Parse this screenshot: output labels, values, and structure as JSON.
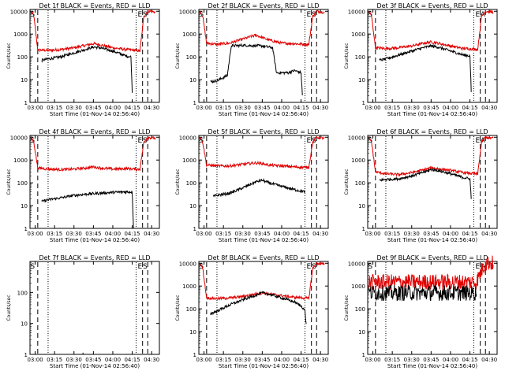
{
  "colors": {
    "events": "#000000",
    "lld": "#e00000",
    "axes": "#000000",
    "background": "#ffffff"
  },
  "xlabel": "Start Time (01-Nov-14 02:56:40)",
  "ylabel": "Counts/sec",
  "x_ticks": [
    "03:00",
    "03:15",
    "03:30",
    "03:45",
    "04:00",
    "04:15",
    "04:30"
  ],
  "y_ticks": [
    "1",
    "10",
    "100",
    "1000",
    "10000"
  ],
  "chart_data": [
    {
      "type": "line",
      "title": "Det 1f BLACK = Events, RED = LLD",
      "ylim": [
        1,
        12000
      ],
      "ylog": true,
      "vlines_dashed": [
        "03:02",
        "04:23",
        "04:27"
      ],
      "vlines_dotted": [
        "03:10",
        "04:18"
      ],
      "markers": [
        {
          "label": "S",
          "x": "02:58"
        },
        {
          "label": "E",
          "x": "04:21"
        },
        {
          "label": "S",
          "x": "04:25"
        }
      ],
      "series": [
        {
          "name": "LLD",
          "color": "#e00000",
          "x": [
            "02:57",
            "02:59",
            "03:02",
            "03:10",
            "03:20",
            "03:30",
            "03:40",
            "03:45",
            "03:50",
            "04:00",
            "04:10",
            "04:15",
            "04:18",
            "04:21",
            "04:24",
            "04:27",
            "04:30",
            "04:33"
          ],
          "y": [
            10000,
            6000,
            200,
            190,
            210,
            250,
            330,
            380,
            340,
            250,
            210,
            200,
            190,
            180,
            6000,
            10000,
            10000,
            9000
          ]
        },
        {
          "name": "Events",
          "color": "#000000",
          "x": [
            "03:05",
            "03:10",
            "03:20",
            "03:30",
            "03:40",
            "03:45",
            "03:50",
            "04:00",
            "04:10",
            "04:14",
            "04:15"
          ],
          "y": [
            70,
            80,
            100,
            150,
            220,
            270,
            250,
            180,
            110,
            100,
            3
          ]
        }
      ]
    },
    {
      "type": "line",
      "title": "Det 2f BLACK = Events, RED = LLD",
      "ylim": [
        1,
        12000
      ],
      "ylog": true,
      "vlines_dashed": [
        "03:02",
        "04:23",
        "04:27"
      ],
      "vlines_dotted": [
        "03:10",
        "04:18"
      ],
      "markers": [
        {
          "label": "S",
          "x": "02:58"
        },
        {
          "label": "E",
          "x": "04:21"
        },
        {
          "label": "S",
          "x": "04:25"
        }
      ],
      "series": [
        {
          "name": "LLD",
          "color": "#e00000",
          "x": [
            "02:57",
            "02:59",
            "03:02",
            "03:10",
            "03:20",
            "03:30",
            "03:40",
            "03:45",
            "03:50",
            "04:00",
            "04:10",
            "04:18",
            "04:21",
            "04:24",
            "04:27",
            "04:33"
          ],
          "y": [
            10000,
            6000,
            400,
            350,
            400,
            600,
            900,
            700,
            550,
            400,
            380,
            350,
            350,
            6000,
            10000,
            9000
          ]
        },
        {
          "name": "Events",
          "color": "#000000",
          "x": [
            "03:05",
            "03:10",
            "03:18",
            "03:21",
            "03:30",
            "03:45",
            "03:53",
            "03:56",
            "04:05",
            "04:10",
            "04:15",
            "04:16"
          ],
          "y": [
            8,
            9,
            15,
            300,
            320,
            300,
            250,
            20,
            20,
            25,
            20,
            2
          ]
        }
      ]
    },
    {
      "type": "line",
      "title": "Det 3f BLACK = Events, RED = LLD",
      "ylim": [
        1,
        12000
      ],
      "ylog": true,
      "vlines_dashed": [
        "03:02",
        "04:23",
        "04:27"
      ],
      "vlines_dotted": [
        "03:10",
        "04:18"
      ],
      "markers": [
        {
          "label": "S",
          "x": "02:58"
        },
        {
          "label": "E",
          "x": "04:21"
        },
        {
          "label": "A",
          "x": "04:25"
        }
      ],
      "series": [
        {
          "name": "LLD",
          "color": "#e00000",
          "x": [
            "02:57",
            "02:59",
            "03:02",
            "03:10",
            "03:20",
            "03:30",
            "03:40",
            "03:45",
            "03:50",
            "04:00",
            "04:10",
            "04:18",
            "04:21",
            "04:24",
            "04:27",
            "04:33"
          ],
          "y": [
            10000,
            6000,
            250,
            230,
            250,
            300,
            400,
            450,
            400,
            300,
            230,
            220,
            210,
            6000,
            10000,
            9000
          ]
        },
        {
          "name": "Events",
          "color": "#000000",
          "x": [
            "03:05",
            "03:10",
            "03:20",
            "03:30",
            "03:40",
            "03:45",
            "03:50",
            "04:00",
            "04:10",
            "04:15",
            "04:16"
          ],
          "y": [
            70,
            80,
            120,
            180,
            260,
            300,
            270,
            180,
            120,
            110,
            3
          ]
        }
      ]
    },
    {
      "type": "line",
      "title": "Det 4f BLACK = Events, RED = LLD",
      "ylim": [
        1,
        12000
      ],
      "ylog": true,
      "vlines_dashed": [
        "03:02",
        "04:23",
        "04:27"
      ],
      "vlines_dotted": [
        "03:10",
        "04:18"
      ],
      "markers": [
        {
          "label": "S",
          "x": "02:58"
        },
        {
          "label": "E",
          "x": "04:21"
        },
        {
          "label": "S",
          "x": "04:25"
        }
      ],
      "series": [
        {
          "name": "LLD",
          "color": "#e00000",
          "x": [
            "02:57",
            "02:59",
            "03:02",
            "03:10",
            "03:20",
            "03:30",
            "03:40",
            "03:45",
            "03:50",
            "04:00",
            "04:10",
            "04:18",
            "04:21",
            "04:24",
            "04:27",
            "04:33"
          ],
          "y": [
            10000,
            6000,
            450,
            400,
            380,
            400,
            450,
            500,
            450,
            400,
            420,
            400,
            400,
            6000,
            10000,
            9000
          ]
        },
        {
          "name": "Events",
          "color": "#000000",
          "x": [
            "03:05",
            "03:10",
            "03:20",
            "03:30",
            "03:40",
            "03:50",
            "04:00",
            "04:10",
            "04:15",
            "04:16"
          ],
          "y": [
            15,
            18,
            22,
            28,
            32,
            35,
            38,
            40,
            40,
            1
          ]
        }
      ]
    },
    {
      "type": "line",
      "title": "Det 5f BLACK = Events, RED = LLD",
      "ylim": [
        1,
        12000
      ],
      "ylog": true,
      "vlines_dashed": [
        "03:02",
        "04:23",
        "04:27"
      ],
      "vlines_dotted": [
        "03:10",
        "04:18"
      ],
      "markers": [
        {
          "label": "S",
          "x": "02:58"
        },
        {
          "label": "E",
          "x": "04:21"
        },
        {
          "label": "S",
          "x": "04:25"
        }
      ],
      "series": [
        {
          "name": "LLD",
          "color": "#e00000",
          "x": [
            "02:57",
            "02:59",
            "03:02",
            "03:10",
            "03:20",
            "03:30",
            "03:40",
            "03:45",
            "03:50",
            "04:00",
            "04:10",
            "04:18",
            "04:21",
            "04:24",
            "04:27",
            "04:33"
          ],
          "y": [
            10000,
            6000,
            600,
            550,
            550,
            650,
            750,
            700,
            600,
            550,
            500,
            480,
            480,
            6000,
            10000,
            9000
          ]
        },
        {
          "name": "Events",
          "color": "#000000",
          "x": [
            "03:07",
            "03:10",
            "03:20",
            "03:30",
            "03:40",
            "03:45",
            "03:50",
            "04:00",
            "04:10",
            "04:18"
          ],
          "y": [
            25,
            28,
            35,
            60,
            110,
            130,
            100,
            70,
            50,
            40
          ]
        }
      ]
    },
    {
      "type": "line",
      "title": "Det 6f BLACK = Events, RED = LLD",
      "ylim": [
        1,
        12000
      ],
      "ylog": true,
      "vlines_dashed": [
        "03:02",
        "04:23",
        "04:27"
      ],
      "vlines_dotted": [
        "03:10",
        "04:18"
      ],
      "markers": [
        {
          "label": "S",
          "x": "02:58"
        },
        {
          "label": "E",
          "x": "04:21"
        },
        {
          "label": "A",
          "x": "04:25"
        }
      ],
      "series": [
        {
          "name": "LLD",
          "color": "#e00000",
          "x": [
            "02:57",
            "02:59",
            "03:02",
            "03:10",
            "03:20",
            "03:30",
            "03:40",
            "03:45",
            "03:50",
            "04:00",
            "04:10",
            "04:18",
            "04:21",
            "04:24",
            "04:27",
            "04:33"
          ],
          "y": [
            10000,
            6000,
            300,
            250,
            230,
            280,
            380,
            450,
            420,
            350,
            280,
            250,
            240,
            6000,
            10000,
            9000
          ]
        },
        {
          "name": "Events",
          "color": "#000000",
          "x": [
            "03:05",
            "03:10",
            "03:20",
            "03:30",
            "03:40",
            "03:45",
            "03:50",
            "04:00",
            "04:10",
            "04:15",
            "04:16"
          ],
          "y": [
            130,
            140,
            150,
            200,
            300,
            380,
            350,
            250,
            170,
            150,
            20
          ]
        }
      ]
    },
    {
      "type": "line",
      "title": "Det 7f BLACK = Events, RED = LLD",
      "ylim": [
        1,
        1000
      ],
      "ylog": true,
      "y_ticks": [
        "1",
        "10",
        "100"
      ],
      "vlines_dashed": [
        "03:02",
        "04:23",
        "04:27"
      ],
      "vlines_dotted": [
        "03:10",
        "04:18"
      ],
      "markers": [
        {
          "label": "S",
          "x": "02:58"
        },
        {
          "label": "E",
          "x": "04:21"
        },
        {
          "label": "S",
          "x": "04:25"
        }
      ],
      "series": [
        {
          "name": "Events",
          "color": "#000000",
          "x": [
            "03:37",
            "03:37"
          ],
          "y": [
            1,
            2
          ]
        }
      ]
    },
    {
      "type": "line",
      "title": "Det 8f BLACK = Events, RED = LLD",
      "ylim": [
        1,
        12000
      ],
      "ylog": true,
      "vlines_dashed": [
        "03:02",
        "04:23",
        "04:27"
      ],
      "vlines_dotted": [
        "03:10",
        "04:18"
      ],
      "markers": [
        {
          "label": "S",
          "x": "02:58"
        },
        {
          "label": "E",
          "x": "04:21"
        },
        {
          "label": "S",
          "x": "04:25"
        }
      ],
      "series": [
        {
          "name": "LLD",
          "color": "#e00000",
          "x": [
            "02:57",
            "02:59",
            "03:02",
            "03:10",
            "03:20",
            "03:30",
            "03:40",
            "03:45",
            "03:50",
            "04:00",
            "04:10",
            "04:18",
            "04:21",
            "04:24",
            "04:27",
            "04:33"
          ],
          "y": [
            10000,
            6000,
            300,
            280,
            300,
            350,
            450,
            500,
            450,
            380,
            320,
            300,
            280,
            6000,
            10000,
            9000
          ]
        },
        {
          "name": "Events",
          "color": "#000000",
          "x": [
            "03:05",
            "03:10",
            "03:20",
            "03:30",
            "03:40",
            "03:45",
            "03:50",
            "04:00",
            "04:10",
            "04:16",
            "04:18",
            "04:19"
          ],
          "y": [
            60,
            80,
            150,
            250,
            400,
            500,
            450,
            300,
            200,
            120,
            80,
            20
          ]
        }
      ]
    },
    {
      "type": "line",
      "title": "Det 9f BLACK = Events, RED = LLD",
      "ylim": [
        1,
        12000
      ],
      "ylog": true,
      "vlines_dashed": [
        "03:02",
        "04:23",
        "04:27"
      ],
      "vlines_dotted": [
        "03:10",
        "04:18"
      ],
      "markers": [
        {
          "label": "S",
          "x": "02:58"
        },
        {
          "label": "E",
          "x": "04:21"
        },
        {
          "label": "A",
          "x": "04:25"
        }
      ],
      "series": [
        {
          "name": "LLD",
          "color": "#e00000",
          "noisy": true,
          "x": [
            "02:57",
            "03:10",
            "03:30",
            "03:50",
            "04:10",
            "04:20",
            "04:24",
            "04:27",
            "04:33"
          ],
          "y": [
            1500,
            1500,
            1500,
            1500,
            1500,
            1500,
            5000,
            10000,
            10000
          ]
        },
        {
          "name": "Events",
          "color": "#000000",
          "noisy": true,
          "x": [
            "02:57",
            "03:10",
            "03:30",
            "03:50",
            "04:10",
            "04:20"
          ],
          "y": [
            500,
            500,
            500,
            500,
            500,
            500
          ]
        }
      ]
    }
  ]
}
